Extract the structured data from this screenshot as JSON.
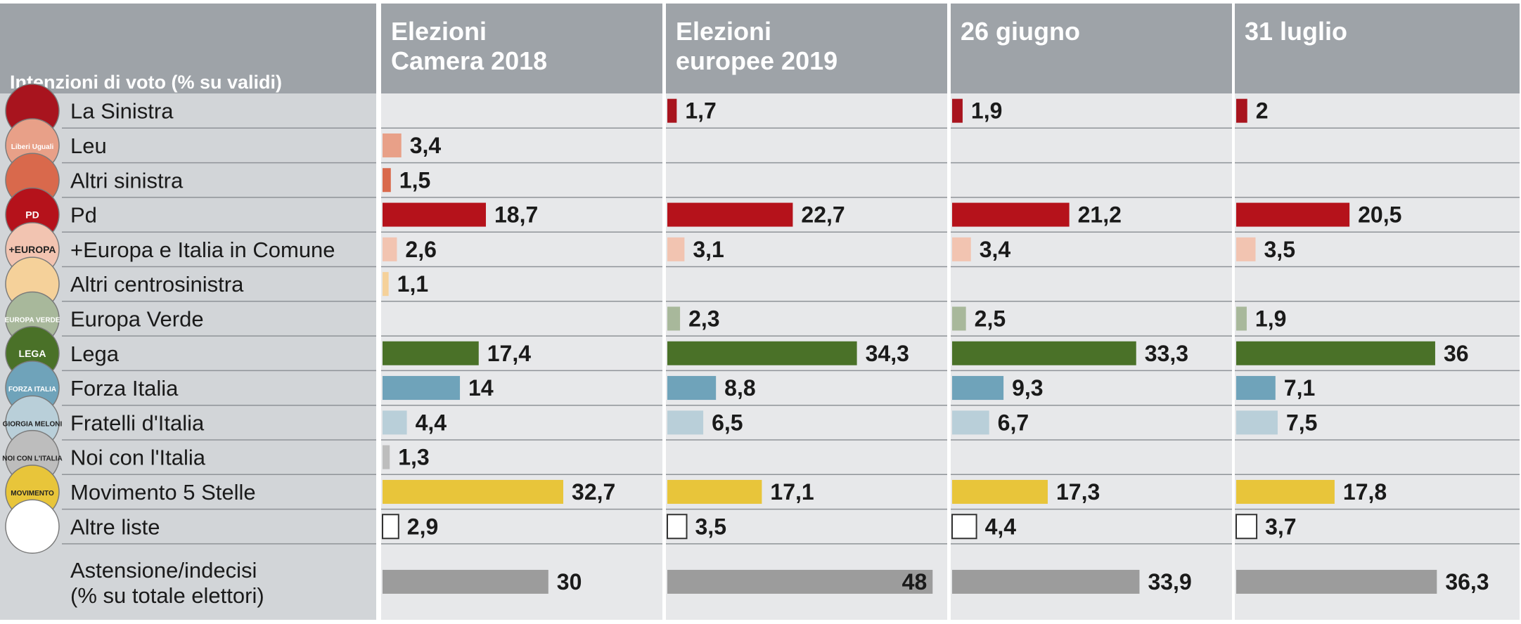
{
  "chart_data": {
    "type": "bar",
    "corner_label": "Intenzioni di voto (% su validi)",
    "categories": [
      "La Sinistra",
      "Leu",
      "Altri sinistra",
      "Pd",
      "+Europa e Italia in Comune",
      "Altri centrosinistra",
      "Europa Verde",
      "Lega",
      "Forza Italia",
      "Fratelli d'Italia",
      "Noi con l'Italia",
      "Movimento 5 Stelle",
      "Altre liste"
    ],
    "abstention_label": [
      "Astensione/indecisi",
      "(% su totale elettori)"
    ],
    "category_colors": [
      "#a8141e",
      "#e8a088",
      "#d9694c",
      "#b5121b",
      "#f2c4b1",
      "#f5d19a",
      "#a8b89b",
      "#4a7128",
      "#6fa3ba",
      "#b9cfd9",
      "#bdbdbd",
      "#e8c53a",
      "#ffffff"
    ],
    "logo_texts": {
      "Leu": "Liberi Uguali",
      "Pd": "PD",
      "+Europa e Italia in Comune": "+EUROPA",
      "Europa Verde": "EUROPA VERDE",
      "Lega": "LEGA",
      "Forza Italia": "FORZA ITALIA",
      "Fratelli d'Italia": "GIORGIA MELONI",
      "Noi con l'Italia": "NOI CON L'ITALIA",
      "Movimento 5 Stelle": "MOVIMENTO"
    },
    "xlim": [
      0,
      50
    ],
    "series": [
      {
        "name": "Elezioni Camera 2018",
        "values": [
          null,
          3.4,
          1.5,
          18.7,
          2.6,
          1.1,
          null,
          17.4,
          14,
          4.4,
          1.3,
          32.7,
          2.9
        ],
        "abstention": 30,
        "labels": [
          null,
          "3,4",
          "1,5",
          "18,7",
          "2,6",
          "1,1",
          null,
          "17,4",
          "14",
          "4,4",
          "1,3",
          "32,7",
          "2,9"
        ],
        "abstention_label": "30"
      },
      {
        "name": "Elezioni europee 2019",
        "values": [
          1.7,
          null,
          null,
          22.7,
          3.1,
          null,
          2.3,
          34.3,
          8.8,
          6.5,
          null,
          17.1,
          3.5
        ],
        "abstention": 48,
        "labels": [
          "1,7",
          null,
          null,
          "22,7",
          "3,1",
          null,
          "2,3",
          "34,3",
          "8,8",
          "6,5",
          null,
          "17,1",
          "3,5"
        ],
        "abstention_label": "48"
      },
      {
        "name": "26 giugno",
        "values": [
          1.9,
          null,
          null,
          21.2,
          3.4,
          null,
          2.5,
          33.3,
          9.3,
          6.7,
          null,
          17.3,
          4.4
        ],
        "abstention": 33.9,
        "labels": [
          "1,9",
          null,
          null,
          "21,2",
          "3,4",
          null,
          "2,5",
          "33,3",
          "9,3",
          "6,7",
          null,
          "17,3",
          "4,4"
        ],
        "abstention_label": "33,9"
      },
      {
        "name": "31 luglio",
        "values": [
          2,
          null,
          null,
          20.5,
          3.5,
          null,
          1.9,
          36,
          7.1,
          7.5,
          null,
          17.8,
          3.7
        ],
        "abstention": 36.3,
        "labels": [
          "2",
          null,
          null,
          "20,5",
          "3,5",
          null,
          "1,9",
          "36",
          "7,1",
          "7,5",
          null,
          "17,8",
          "3,7"
        ],
        "abstention_label": "36,3"
      }
    ],
    "colors": {
      "header_bg": "#9ea3a8",
      "label_panel_bg": "#d2d5d8",
      "panel_bg": "#e7e8ea",
      "row_line": "#8f9398",
      "abstention_bar": "#9c9c9c",
      "text": "#1a1a1a",
      "header_text": "#ffffff"
    }
  }
}
